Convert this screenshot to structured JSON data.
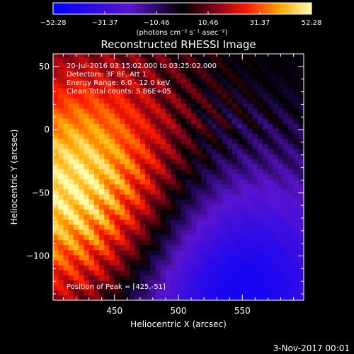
{
  "chart_data": {
    "type": "heatmap",
    "title": "Reconstructed RHESSI Image",
    "xlabel": "Heliocentric X (arcsec)",
    "ylabel": "Heliocentric Y (arcsec)",
    "xlim": [
      402,
      598
    ],
    "ylim": [
      -135,
      60
    ],
    "x_ticks": [
      450,
      500,
      550
    ],
    "y_ticks": [
      50,
      0,
      -50,
      -100
    ],
    "y_tick_labels": [
      "50",
      "0",
      "−50",
      "−100"
    ],
    "peak": [
      425,
      -51
    ],
    "peak_value": 52.28,
    "min_value": -52.28,
    "colorbar": {
      "min": -52.28,
      "max": 52.28,
      "ticks": [
        -52.28,
        -31.37,
        -10.46,
        10.46,
        31.37,
        52.28
      ],
      "tick_labels": [
        "−52.28",
        "−31.37",
        "−10.46",
        "10.46",
        "31.37",
        "52.28"
      ],
      "unit_label": "(photons cm⁻² s⁻¹ asec⁻²)"
    },
    "annotations": [
      "20-Jul-2016 03:15:02.000 to 03:25:02.000",
      "Detectors: 3F 8F, Att 1",
      "Energy Range: 6.0 - 12.0 keV",
      "Clean    Total counts: 5.86E+05"
    ],
    "peak_label": "Position of Peak = [425,-51]"
  },
  "footer": {
    "date": "3-Nov-2017 00:01"
  }
}
